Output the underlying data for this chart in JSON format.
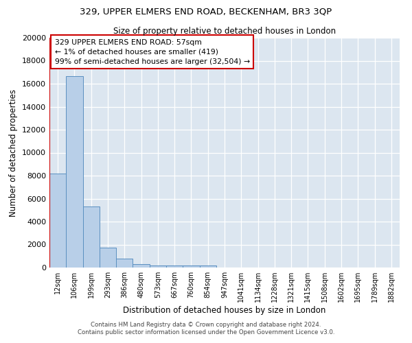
{
  "title1": "329, UPPER ELMERS END ROAD, BECKENHAM, BR3 3QP",
  "title2": "Size of property relative to detached houses in London",
  "xlabel": "Distribution of detached houses by size in London",
  "ylabel": "Number of detached properties",
  "annotation_line1": "329 UPPER ELMERS END ROAD: 57sqm",
  "annotation_line2": "← 1% of detached houses are smaller (419)",
  "annotation_line3": "99% of semi-detached houses are larger (32,504) →",
  "bar_color": "#b8cfe8",
  "bar_edge_color": "#5a8fc0",
  "vline_color": "#cc0000",
  "annotation_box_color": "#ffffff",
  "annotation_box_edge": "#cc0000",
  "background_color": "#dce6f0",
  "bin_labels": [
    "12sqm",
    "106sqm",
    "199sqm",
    "293sqm",
    "386sqm",
    "480sqm",
    "573sqm",
    "667sqm",
    "760sqm",
    "854sqm",
    "947sqm",
    "1041sqm",
    "1134sqm",
    "1228sqm",
    "1321sqm",
    "1415sqm",
    "1508sqm",
    "1602sqm",
    "1695sqm",
    "1789sqm",
    "1882sqm"
  ],
  "bin_values": [
    8200,
    16650,
    5300,
    1750,
    750,
    280,
    200,
    180,
    170,
    150,
    0,
    0,
    0,
    0,
    0,
    0,
    0,
    0,
    0,
    0,
    0
  ],
  "ylim": [
    0,
    20000
  ],
  "yticks": [
    0,
    2000,
    4000,
    6000,
    8000,
    10000,
    12000,
    14000,
    16000,
    18000,
    20000
  ],
  "footer1": "Contains HM Land Registry data © Crown copyright and database right 2024.",
  "footer2": "Contains public sector information licensed under the Open Government Licence v3.0."
}
